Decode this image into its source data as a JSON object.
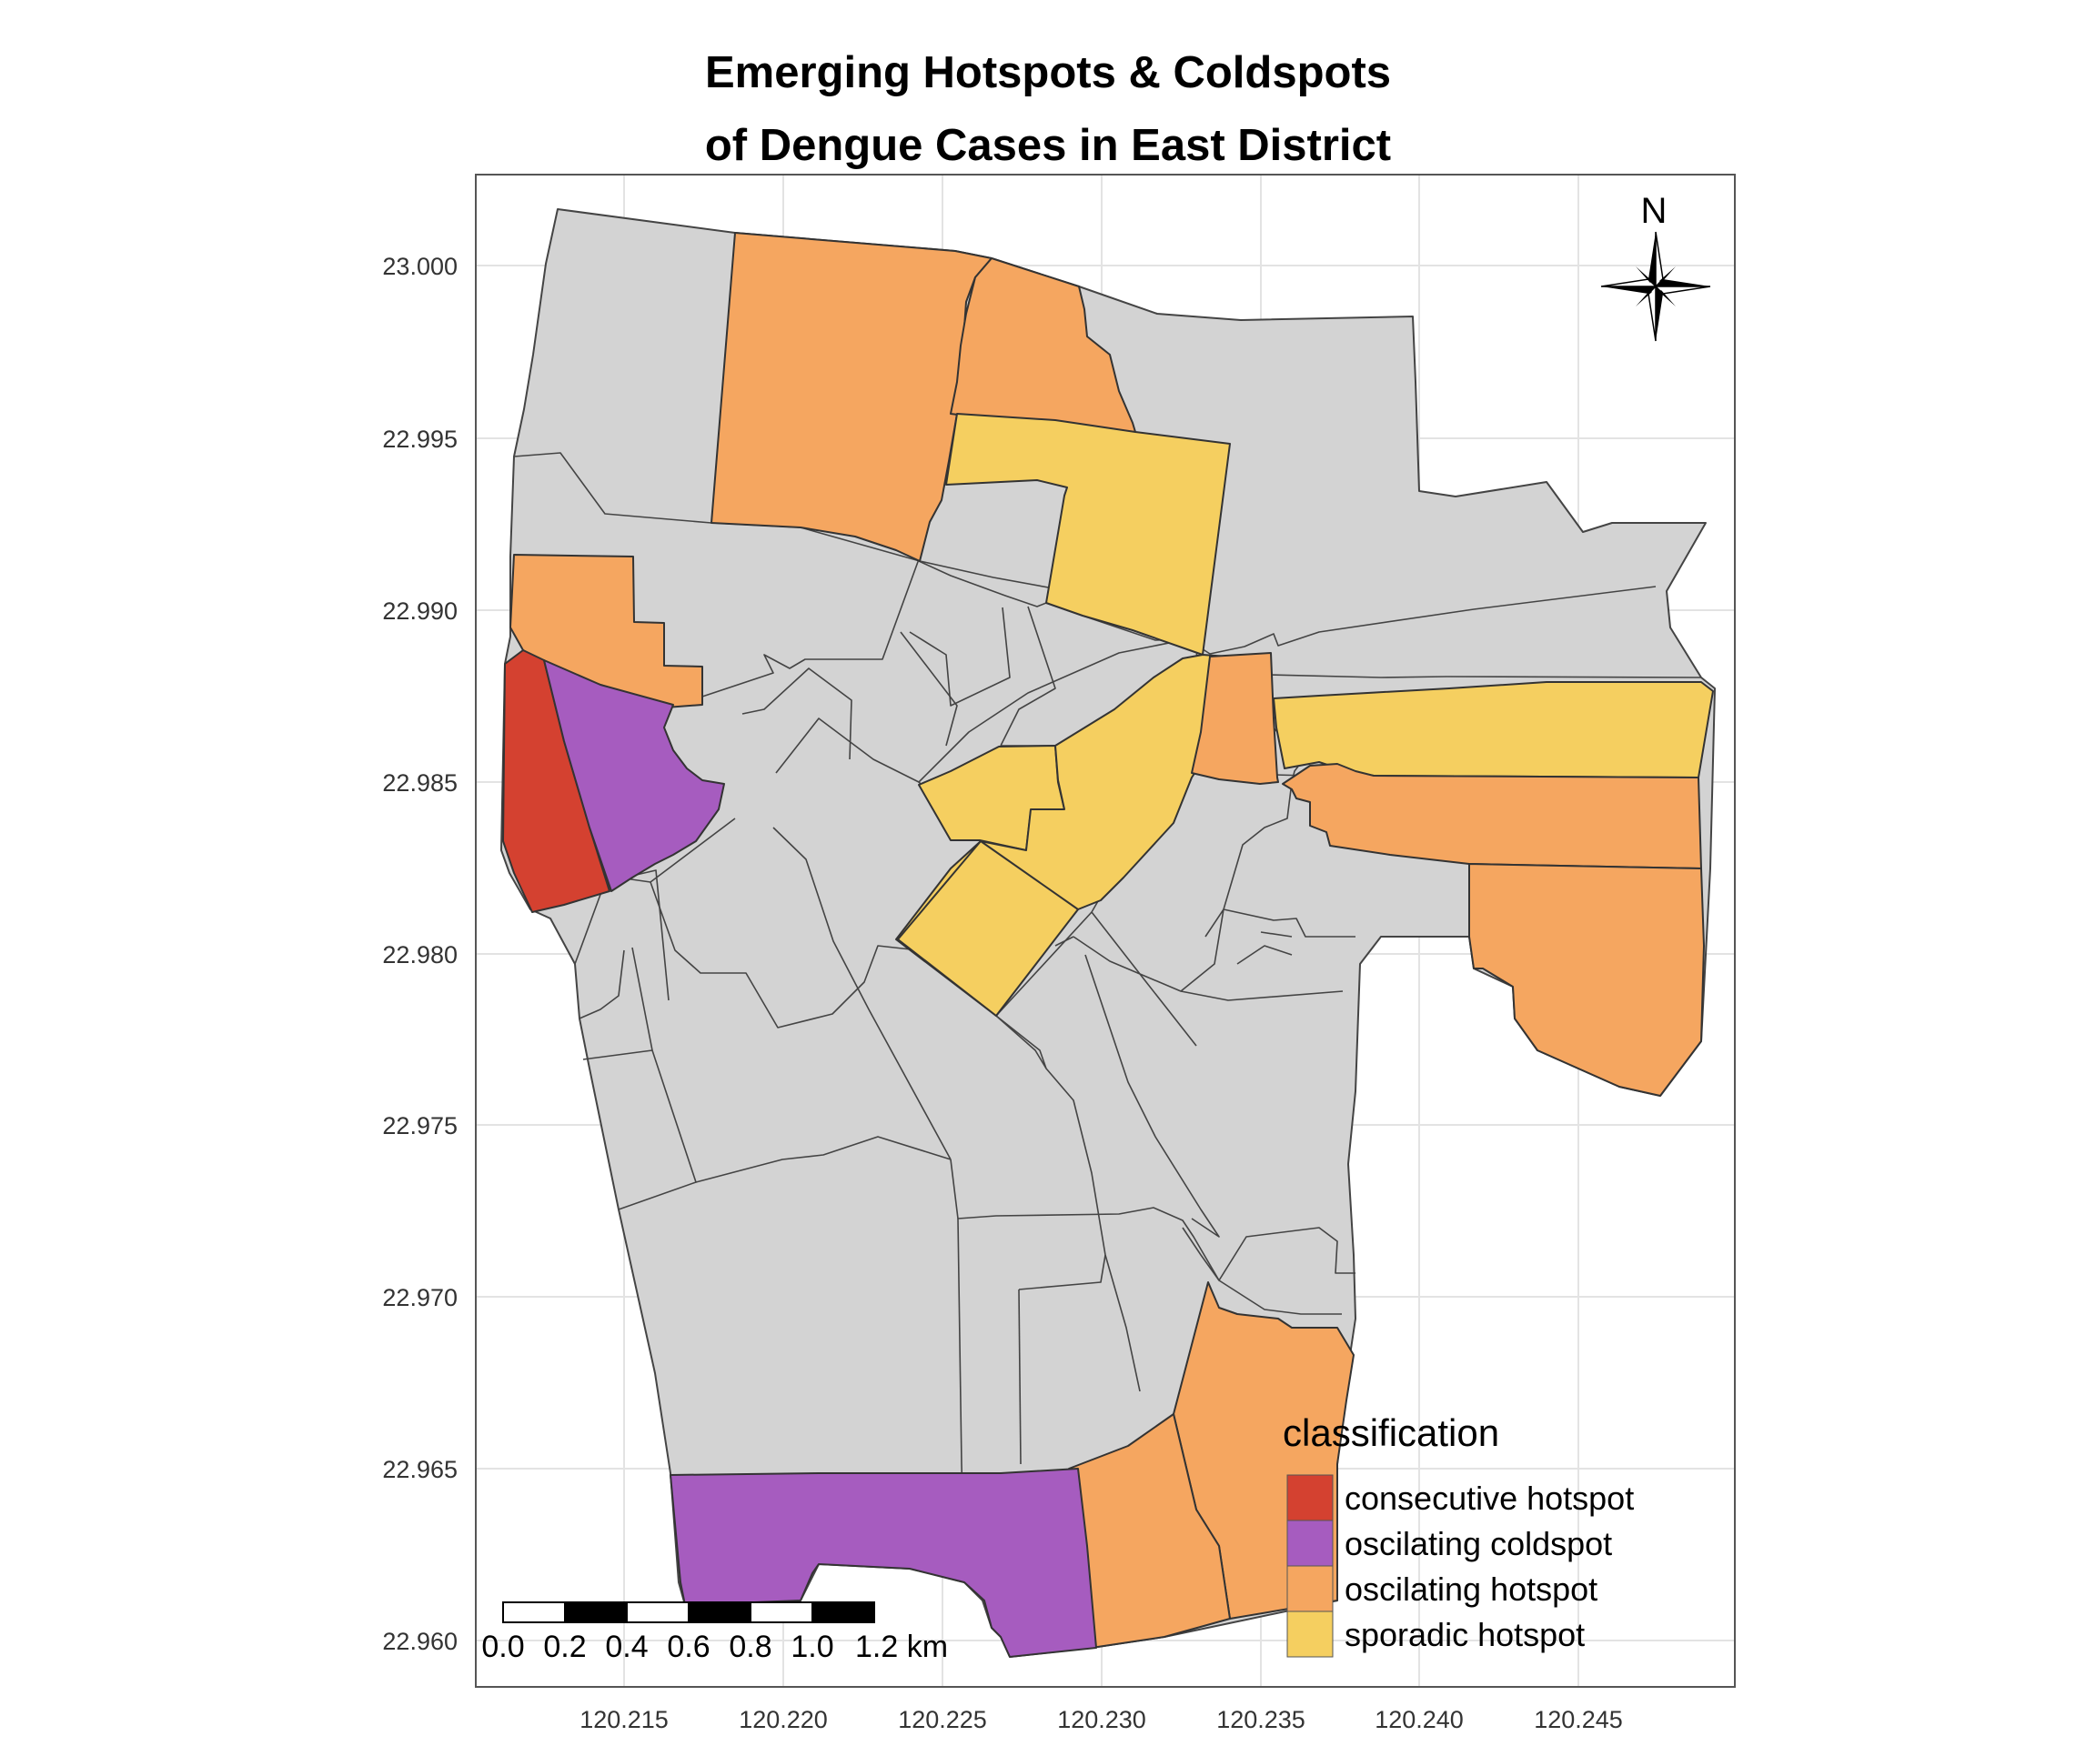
{
  "title": {
    "line1": "Emerging Hotspots & Coldspots",
    "line2": "of Dengue Cases in East District"
  },
  "axes": {
    "x_ticks": [
      "120.215",
      "120.220",
      "120.225",
      "120.230",
      "120.235",
      "120.240",
      "120.245"
    ],
    "y_ticks": [
      "23.000",
      "22.995",
      "22.990",
      "22.985",
      "22.980",
      "22.975",
      "22.970",
      "22.965",
      "22.960"
    ]
  },
  "north_arrow": {
    "label": "N"
  },
  "scale_bar": {
    "labels": [
      "0.0",
      "0.2",
      "0.4",
      "0.6",
      "0.8",
      "1.0",
      "1.2 km"
    ]
  },
  "legend": {
    "title": "classification",
    "items": [
      {
        "label": "consecutive hotspot",
        "color": "#d44130"
      },
      {
        "label": "oscilating coldspot",
        "color": "#a65cbf"
      },
      {
        "label": "oscilating hotspot",
        "color": "#f5a660"
      },
      {
        "label": "sporadic hotspot",
        "color": "#f5cf60"
      }
    ]
  },
  "colors": {
    "no_pattern": "#d3d3d3",
    "border": "#444444",
    "grid": "#e3e3e3",
    "panel_border": "#555555"
  }
}
